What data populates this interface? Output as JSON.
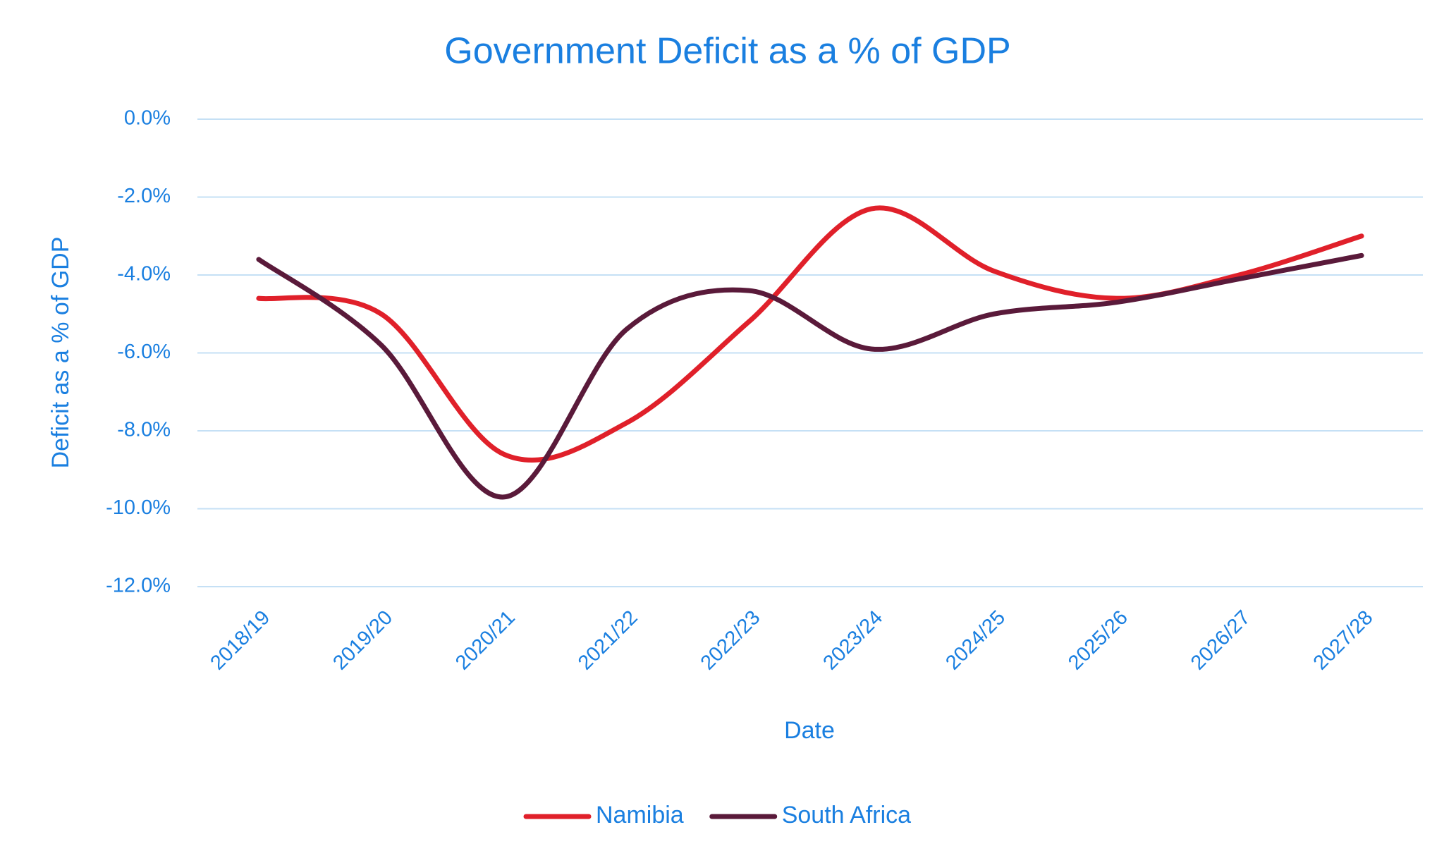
{
  "chart_data": {
    "type": "line",
    "title": "Government Deficit as a % of GDP",
    "x_label": "Date",
    "y_label": "Deficit as a % of GDP",
    "categories": [
      "2018/19",
      "2019/20",
      "2020/21",
      "2021/22",
      "2022/23",
      "2023/24",
      "2024/25",
      "2025/26",
      "2026/27",
      "2027/28"
    ],
    "series": [
      {
        "name": "Namibia",
        "color": "#e0202a",
        "values": [
          -4.6,
          -5.0,
          -8.6,
          -7.8,
          -5.2,
          -2.3,
          -3.9,
          -4.6,
          -4.0,
          -3.0
        ]
      },
      {
        "name": "South Africa",
        "color": "#5a1a3a",
        "values": [
          -3.6,
          -5.8,
          -9.7,
          -5.4,
          -4.4,
          -5.9,
          -5.0,
          -4.7,
          -4.1,
          -3.5
        ]
      }
    ],
    "ylim": [
      -12,
      0
    ],
    "yticks": [
      {
        "value": 0,
        "label": "0.0%"
      },
      {
        "value": -2,
        "label": "-2.0%"
      },
      {
        "value": -4,
        "label": "-4.0%"
      },
      {
        "value": -6,
        "label": "-6.0%"
      },
      {
        "value": -8,
        "label": "-8.0%"
      },
      {
        "value": -10,
        "label": "-10.0%"
      },
      {
        "value": -12,
        "label": "-12.0%"
      }
    ],
    "grid": true,
    "smooth": true,
    "legend": "bottom"
  }
}
